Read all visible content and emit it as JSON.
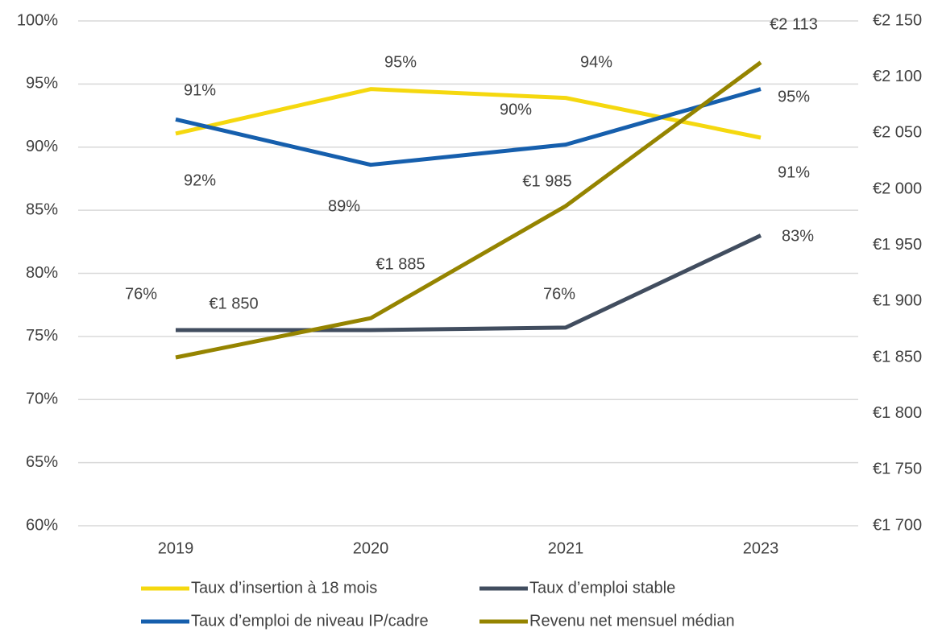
{
  "chart_data": {
    "type": "line",
    "categories": [
      "2019",
      "2020",
      "2021",
      "2023"
    ],
    "series": [
      {
        "name": "Taux d’insertion à 18 mois",
        "color": "#f5d80f",
        "values": [
          91.07,
          94.6,
          93.9,
          90.75
        ],
        "value_labels": [
          "91%",
          "95%",
          "94%",
          "91%"
        ]
      },
      {
        "name": "Taux d’emploi stable",
        "color": "#414d5f",
        "values": [
          75.5,
          75.5,
          75.7,
          83.0
        ],
        "value_labels": [
          "76%",
          null,
          "76%",
          "83%"
        ]
      },
      {
        "name": "Taux d’emploi de niveau IP/cadre",
        "color": "#165fad",
        "values": [
          92.2,
          88.6,
          90.2,
          94.6
        ],
        "value_labels": [
          "92%",
          "89%",
          "90%",
          "95%"
        ]
      },
      {
        "name": "Revenu net mensuel médian",
        "color": "#958400",
        "axis": "y2",
        "values": [
          1850,
          1885,
          1985,
          2113
        ],
        "value_labels": [
          "€1 850",
          "€1 885",
          "€1 985",
          "€2 113"
        ]
      }
    ],
    "ylim": [
      60,
      100
    ],
    "yticks": [
      {
        "value": 60,
        "label": "60%"
      },
      {
        "value": 65,
        "label": "65%"
      },
      {
        "value": 70,
        "label": "70%"
      },
      {
        "value": 75,
        "label": "75%"
      },
      {
        "value": 80,
        "label": "80%"
      },
      {
        "value": 85,
        "label": "85%"
      },
      {
        "value": 90,
        "label": "90%"
      },
      {
        "value": 95,
        "label": "95%"
      },
      {
        "value": 100,
        "label": "100%"
      }
    ],
    "y2lim": [
      1700,
      2150
    ],
    "y2ticks": [
      {
        "value": 1700,
        "label": "€1 700"
      },
      {
        "value": 1750,
        "label": "€1 750"
      },
      {
        "value": 1800,
        "label": "€1 800"
      },
      {
        "value": 1850,
        "label": "€1 850"
      },
      {
        "value": 1900,
        "label": "€1 900"
      },
      {
        "value": 1950,
        "label": "€1 950"
      },
      {
        "value": 2000,
        "label": "€2 000"
      },
      {
        "value": 2050,
        "label": "€2 050"
      },
      {
        "value": 2100,
        "label": "€2 100"
      },
      {
        "value": 2150,
        "label": "€2 150"
      }
    ],
    "grid": true,
    "legend": "bottom"
  }
}
